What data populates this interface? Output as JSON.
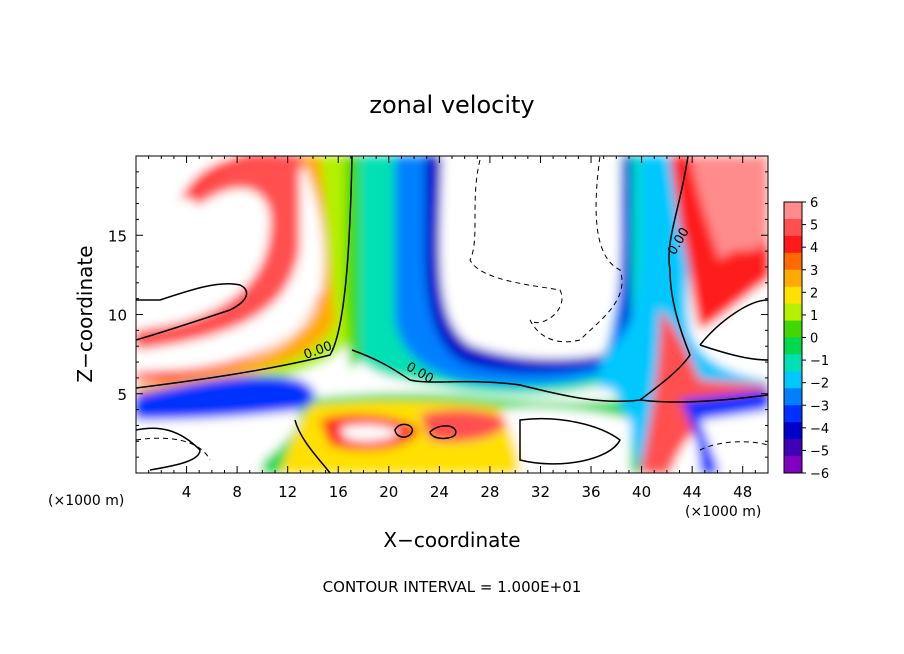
{
  "chart_data": {
    "type": "heatmap",
    "title": "zonal velocity",
    "xlabel": "X−coordinate",
    "ylabel": "Z−coordinate",
    "x_unit_label": "(×1000 m)",
    "y_unit_label": "(×1000 m)",
    "xlim": [
      0,
      50
    ],
    "ylim": [
      0,
      20
    ],
    "x_ticks": [
      4,
      8,
      12,
      16,
      20,
      24,
      28,
      32,
      36,
      40,
      44,
      48
    ],
    "y_ticks": [
      5,
      10,
      15
    ],
    "colorbar": {
      "ticks": [
        6,
        5,
        4,
        3,
        2,
        1,
        0,
        -1,
        -2,
        -3,
        -4,
        -5,
        -6
      ],
      "tick_labels": [
        "6",
        "5",
        "4",
        "3",
        "2",
        "1",
        "0",
        "−1",
        "−2",
        "−3",
        "−4",
        "−5",
        "−6"
      ],
      "colors": [
        "#ff8c8c",
        "#ff5050",
        "#ff1a1a",
        "#ff6a00",
        "#ffaa00",
        "#ffe000",
        "#b4f000",
        "#40d800",
        "#00d850",
        "#00e0b4",
        "#00c8ff",
        "#0080ff",
        "#0030ff",
        "#0000c8",
        "#4000b4",
        "#8000c0"
      ]
    },
    "contour_labels": [
      {
        "text": "0.00",
        "x": 14.5,
        "y": 7.5,
        "angle": -20
      },
      {
        "text": "0.00",
        "x": 22.3,
        "y": 6.1,
        "angle": 30
      },
      {
        "text": "0.00",
        "x": 43.2,
        "y": 14.5,
        "angle": -60
      }
    ],
    "footer": "CONTOUR INTERVAL =  1.000E+01",
    "field_features": {
      "positive_jets": [
        {
          "x": 8,
          "z": 17,
          "value": 6
        },
        {
          "x": 12,
          "z": 10,
          "value": 4
        },
        {
          "x": 44,
          "z": 15,
          "value": 5
        },
        {
          "x": 46,
          "z": 6,
          "value": 5
        }
      ],
      "negative_jets": [
        {
          "x": 20,
          "z": 13,
          "value": -5
        },
        {
          "x": 34,
          "z": 6,
          "value": -5
        },
        {
          "x": 40,
          "z": 12,
          "value": -5
        }
      ]
    }
  }
}
